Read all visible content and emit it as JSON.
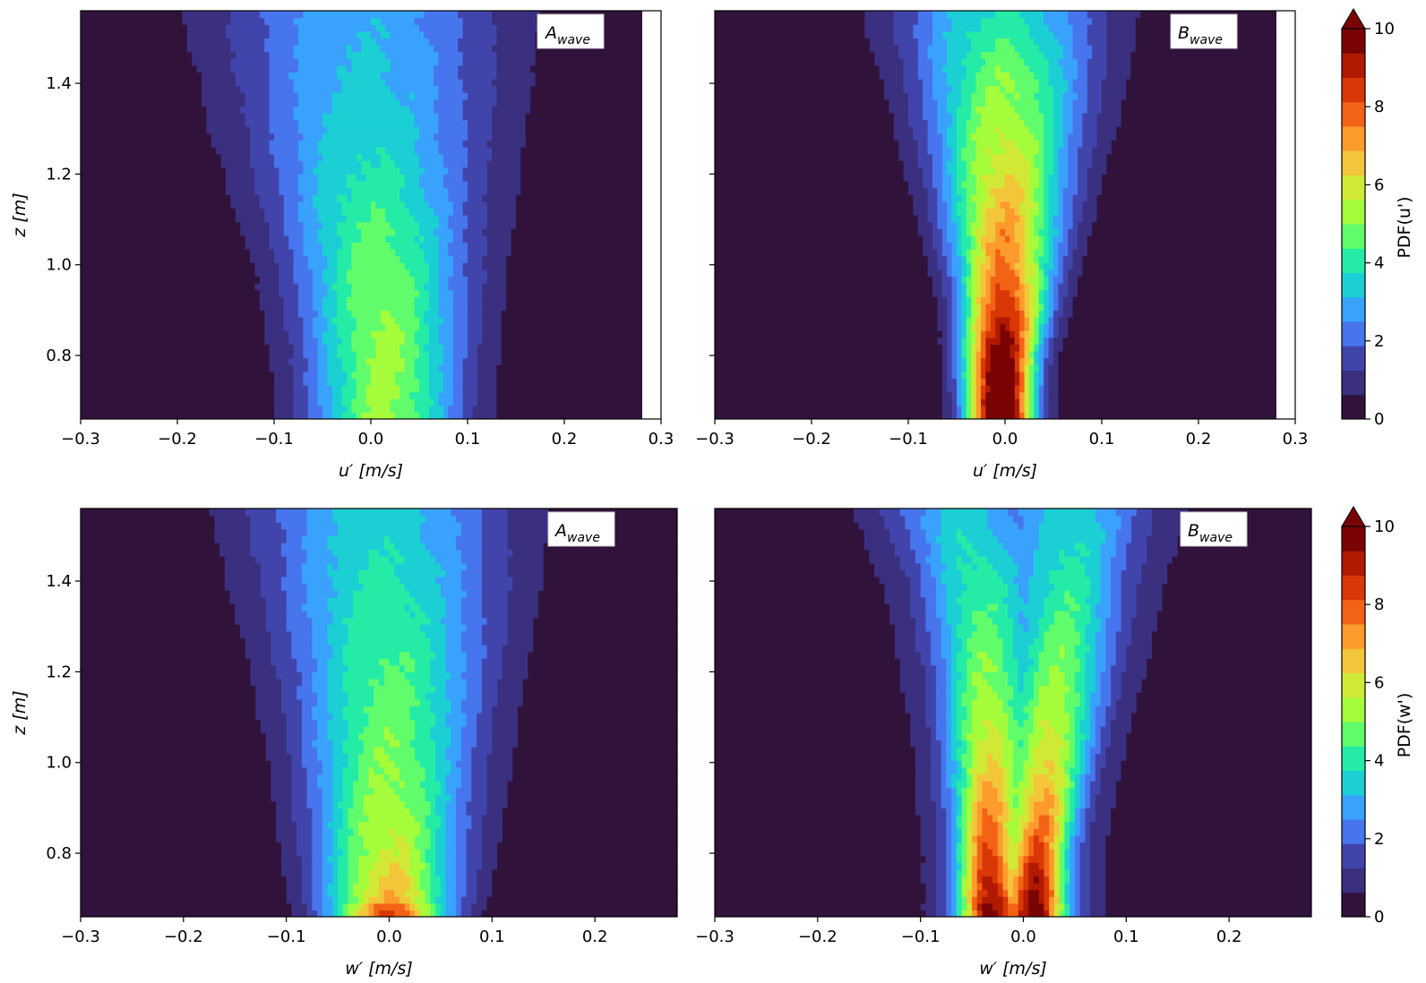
{
  "chart_data": [
    {
      "type": "heatmap",
      "id": "tl",
      "label": "A",
      "label_sub": "wave",
      "xlabel_var": "u′",
      "xlabel_unit": "[m/s]",
      "ylabel_var": "z",
      "ylabel_unit": "[m]",
      "xlim": [
        -0.3,
        0.3
      ],
      "ylim": [
        0.66,
        1.56
      ],
      "data_xlim": [
        -0.3,
        0.28
      ],
      "x_ticks": [
        -0.3,
        -0.2,
        -0.1,
        0.0,
        0.1,
        0.2,
        0.3
      ],
      "x_tick_labels": [
        "−0.3",
        "−0.2",
        "−0.1",
        "0.0",
        "0.1",
        "0.2",
        "0.3"
      ],
      "y_ticks": [
        0.8,
        1.0,
        1.2,
        1.4
      ],
      "y_tick_labels": [
        "0.8",
        "1.0",
        "1.2",
        "1.4"
      ],
      "profile": {
        "z": [
          0.66,
          0.8,
          1.0,
          1.2,
          1.4,
          1.56
        ],
        "center": [
          0.015,
          0.015,
          0.01,
          0.0,
          -0.005,
          -0.01
        ],
        "width": [
          0.055,
          0.058,
          0.065,
          0.08,
          0.095,
          0.105
        ],
        "peak": [
          5.2,
          5.2,
          4.8,
          3.9,
          3.3,
          3.0
        ],
        "bimodal": 0.0
      }
    },
    {
      "type": "heatmap",
      "id": "tr",
      "label": "B",
      "label_sub": "wave",
      "xlabel_var": "u′",
      "xlabel_unit": "[m/s]",
      "xlim": [
        -0.3,
        0.3
      ],
      "ylim": [
        0.66,
        1.56
      ],
      "data_xlim": [
        -0.3,
        0.28
      ],
      "x_ticks": [
        -0.3,
        -0.2,
        -0.1,
        0.0,
        0.1,
        0.2,
        0.3
      ],
      "x_tick_labels": [
        "−0.3",
        "−0.2",
        "−0.1",
        "0.0",
        "0.1",
        "0.2",
        "0.3"
      ],
      "y_ticks": [
        0.8,
        1.0,
        1.2,
        1.4
      ],
      "profile": {
        "z": [
          0.66,
          0.8,
          0.9,
          1.0,
          1.2,
          1.4,
          1.56
        ],
        "center": [
          -0.005,
          -0.005,
          0.0,
          0.0,
          0.0,
          0.0,
          -0.005
        ],
        "width": [
          0.024,
          0.026,
          0.03,
          0.036,
          0.048,
          0.062,
          0.075
        ],
        "peak": [
          11.5,
          10.5,
          9.0,
          7.6,
          6.2,
          5.0,
          3.8
        ],
        "bimodal": 0.0
      }
    },
    {
      "type": "heatmap",
      "id": "bl",
      "label": "A",
      "label_sub": "wave",
      "xlabel_var": "w′",
      "xlabel_unit": "[m/s]",
      "ylabel_var": "z",
      "ylabel_unit": "[m]",
      "xlim": [
        -0.3,
        0.28
      ],
      "ylim": [
        0.66,
        1.56
      ],
      "data_xlim": [
        -0.3,
        0.28
      ],
      "x_ticks": [
        -0.3,
        -0.2,
        -0.1,
        0.0,
        0.1,
        0.2
      ],
      "x_tick_labels": [
        "−0.3",
        "−0.2",
        "−0.1",
        "0.0",
        "0.1",
        "0.2"
      ],
      "y_ticks": [
        0.8,
        1.0,
        1.2,
        1.4
      ],
      "y_tick_labels": [
        "0.8",
        "1.0",
        "1.2",
        "1.4"
      ],
      "profile": {
        "z": [
          0.66,
          0.7,
          0.8,
          1.0,
          1.2,
          1.4,
          1.56
        ],
        "center": [
          0.0,
          0.0,
          0.0,
          0.0,
          0.0,
          -0.005,
          -0.01
        ],
        "width": [
          0.04,
          0.045,
          0.05,
          0.058,
          0.068,
          0.08,
          0.09
        ],
        "peak": [
          8.5,
          6.8,
          5.8,
          5.0,
          4.5,
          3.9,
          3.4
        ],
        "bimodal": 0.0
      }
    },
    {
      "type": "heatmap",
      "id": "br",
      "label": "B",
      "label_sub": "wave",
      "xlabel_var": "w′",
      "xlabel_unit": "[m/s]",
      "xlim": [
        -0.3,
        0.28
      ],
      "ylim": [
        0.66,
        1.56
      ],
      "data_xlim": [
        -0.3,
        0.28
      ],
      "x_ticks": [
        -0.3,
        -0.2,
        -0.1,
        0.0,
        0.1,
        0.2
      ],
      "x_tick_labels": [
        "−0.3",
        "−0.2",
        "−0.1",
        "0.0",
        "0.1",
        "0.2"
      ],
      "y_ticks": [
        0.8,
        1.0,
        1.2,
        1.4
      ],
      "profile": {
        "z": [
          0.66,
          0.8,
          1.0,
          1.2,
          1.4,
          1.56
        ],
        "center": [
          -0.01,
          -0.01,
          -0.005,
          0.0,
          0.0,
          -0.005
        ],
        "width": [
          0.032,
          0.034,
          0.042,
          0.052,
          0.064,
          0.08
        ],
        "peak": [
          10.5,
          8.5,
          6.5,
          5.2,
          4.2,
          3.5
        ],
        "bimodal": 0.55
      }
    }
  ],
  "colorbars": [
    {
      "id": "cb_top",
      "label": "PDF(u')",
      "range": [
        0,
        10
      ],
      "extend": "max",
      "ticks": [
        0,
        2,
        4,
        6,
        8,
        10
      ],
      "tick_labels": [
        "0",
        "2",
        "4",
        "6",
        "8",
        "10"
      ]
    },
    {
      "id": "cb_bottom",
      "label": "PDF(w')",
      "range": [
        0,
        10
      ],
      "extend": "max",
      "ticks": [
        0,
        2,
        4,
        6,
        8,
        10
      ],
      "tick_labels": [
        "0",
        "2",
        "4",
        "6",
        "8",
        "10"
      ]
    }
  ],
  "colormap": [
    "#30123b",
    "#3b2f80",
    "#4145ab",
    "#4675ed",
    "#39a2fc",
    "#1bcfd4",
    "#24eca6",
    "#61fc6c",
    "#a4fc3b",
    "#d1e834",
    "#f3c63a",
    "#fe9b2d",
    "#f36315",
    "#d93806",
    "#b11901",
    "#7a0403"
  ]
}
